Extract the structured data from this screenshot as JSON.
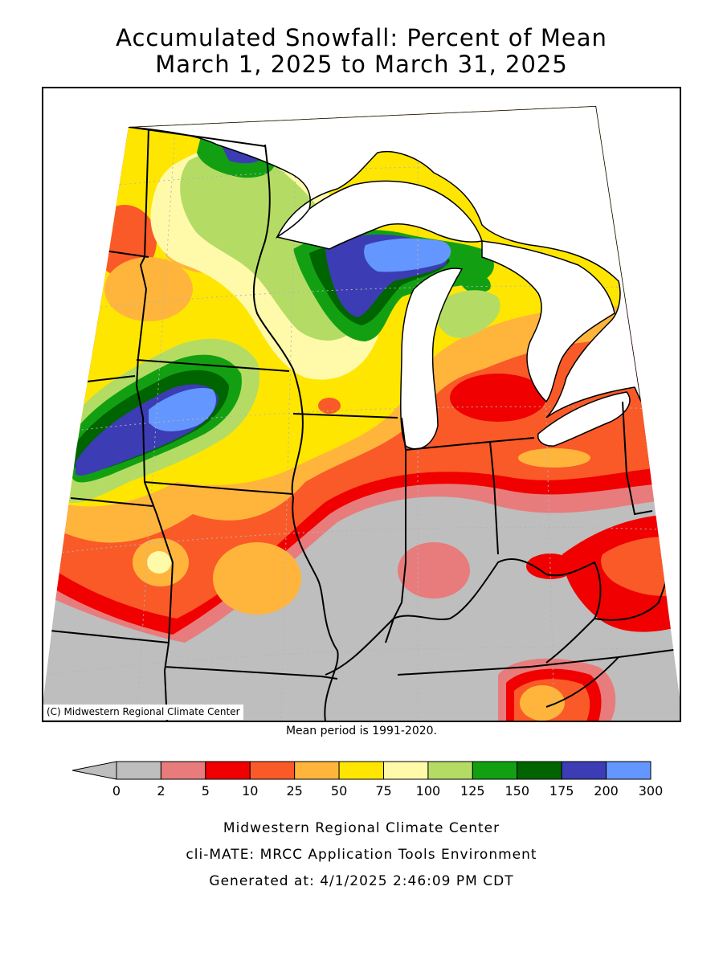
{
  "title_line1": "Accumulated Snowfall: Percent of Mean",
  "title_line2": "March 1, 2025 to March 31, 2025",
  "credit": "(C) Midwestern Regional Climate Center",
  "mean_note": "Mean period is 1991-2020.",
  "legend": {
    "bins": [
      {
        "label": "0",
        "color": "#bebebe"
      },
      {
        "label": "2",
        "color": "#e87c7c"
      },
      {
        "label": "5",
        "color": "#f00000"
      },
      {
        "label": "10",
        "color": "#fa5a28"
      },
      {
        "label": "25",
        "color": "#ffb53c"
      },
      {
        "label": "50",
        "color": "#ffe600"
      },
      {
        "label": "75",
        "color": "#fffaaa"
      },
      {
        "label": "100",
        "color": "#b4dc64"
      },
      {
        "label": "125",
        "color": "#12a012"
      },
      {
        "label": "150",
        "color": "#006400"
      },
      {
        "label": "175",
        "color": "#3c3cb4"
      },
      {
        "label": "200",
        "color": "#6496ff"
      }
    ],
    "last_label": "300",
    "arrow_color": "#bebebe"
  },
  "footer_line1": "Midwestern Regional Climate Center",
  "footer_line2": "cli-MATE: MRCC Application Tools Environment",
  "footer_line3": "Generated at: 4/1/2025 2:46:09 PM CDT",
  "colors": {
    "lake": "#ffffff",
    "border": "#000000",
    "grid": "#b4b4b4"
  }
}
